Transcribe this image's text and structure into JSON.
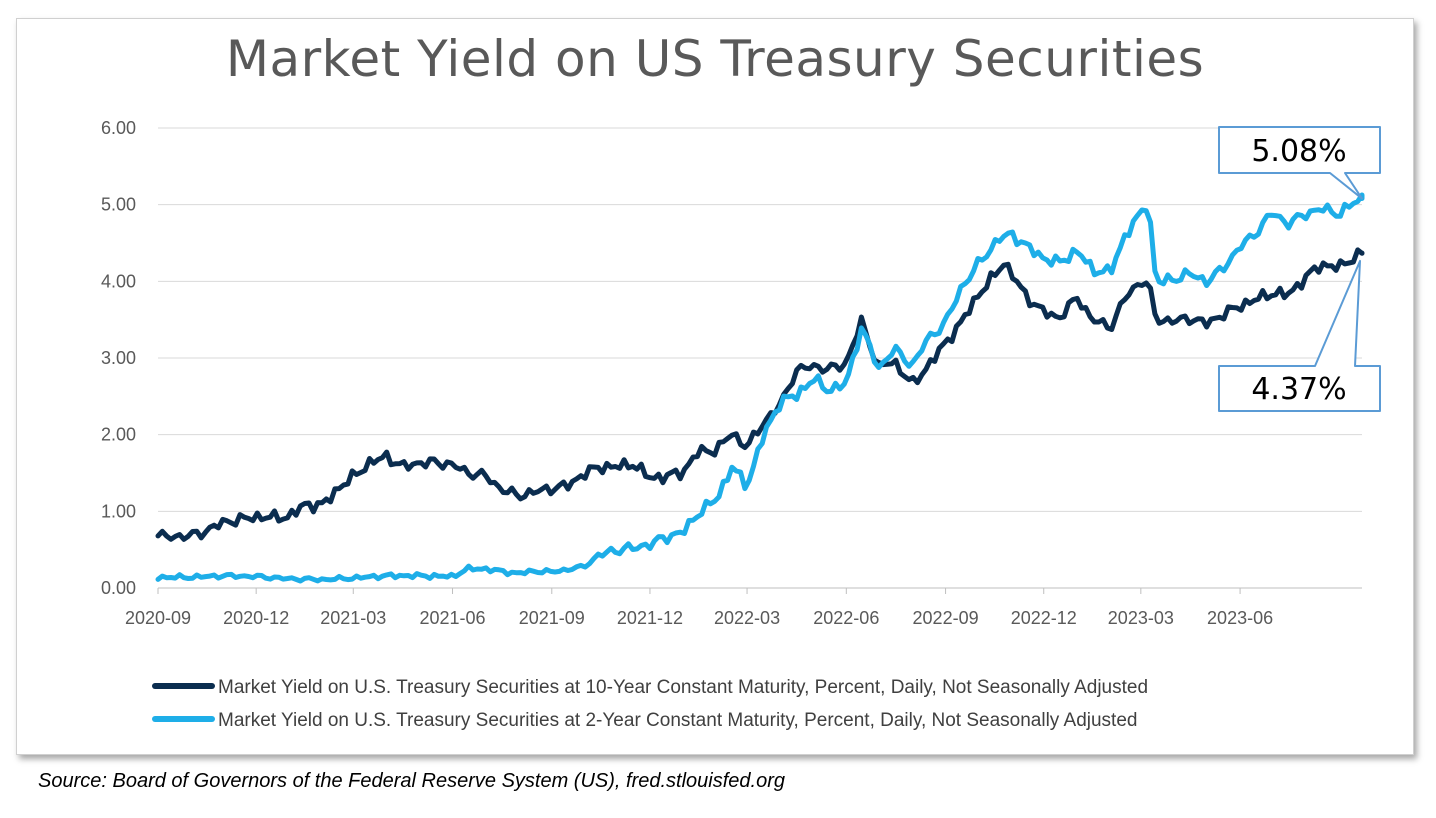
{
  "chart_data": {
    "type": "line",
    "title": "Market Yield on US Treasury Securities",
    "x_ticks": [
      "2020-09",
      "2020-12",
      "2021-03",
      "2021-06",
      "2021-09",
      "2021-12",
      "2022-03",
      "2022-06",
      "2022-09",
      "2022-12",
      "2023-03",
      "2023-06"
    ],
    "y_ticks": [
      "0.00",
      "1.00",
      "2.00",
      "3.00",
      "4.00",
      "5.00",
      "6.00"
    ],
    "ylim": [
      0,
      6
    ],
    "xlim": [
      "2020-09-01",
      "2023-09-22"
    ],
    "grid": "horizontal",
    "legend_position": "bottom",
    "series": [
      {
        "name": "Market Yield on U.S. Treasury Securities at 10-Year Constant Maturity, Percent, Daily, Not Seasonally Adjusted",
        "color": "#0b2d4f",
        "points": [
          [
            "2020-09-01",
            0.68
          ],
          [
            "2020-09-15",
            0.67
          ],
          [
            "2020-10-01",
            0.68
          ],
          [
            "2020-10-15",
            0.74
          ],
          [
            "2020-11-01",
            0.86
          ],
          [
            "2020-11-15",
            0.89
          ],
          [
            "2020-12-01",
            0.93
          ],
          [
            "2020-12-15",
            0.92
          ],
          [
            "2021-01-01",
            0.93
          ],
          [
            "2021-01-15",
            1.09
          ],
          [
            "2021-02-01",
            1.08
          ],
          [
            "2021-02-15",
            1.3
          ],
          [
            "2021-03-01",
            1.45
          ],
          [
            "2021-03-15",
            1.62
          ],
          [
            "2021-04-01",
            1.72
          ],
          [
            "2021-04-15",
            1.58
          ],
          [
            "2021-05-01",
            1.63
          ],
          [
            "2021-05-15",
            1.64
          ],
          [
            "2021-06-01",
            1.61
          ],
          [
            "2021-06-15",
            1.5
          ],
          [
            "2021-07-01",
            1.47
          ],
          [
            "2021-07-15",
            1.3
          ],
          [
            "2021-08-01",
            1.2
          ],
          [
            "2021-08-15",
            1.25
          ],
          [
            "2021-09-01",
            1.3
          ],
          [
            "2021-09-15",
            1.33
          ],
          [
            "2021-10-01",
            1.49
          ],
          [
            "2021-10-15",
            1.58
          ],
          [
            "2021-11-01",
            1.58
          ],
          [
            "2021-11-15",
            1.62
          ],
          [
            "2021-12-01",
            1.44
          ],
          [
            "2021-12-15",
            1.45
          ],
          [
            "2022-01-01",
            1.52
          ],
          [
            "2022-01-15",
            1.78
          ],
          [
            "2022-02-01",
            1.8
          ],
          [
            "2022-02-15",
            2.02
          ],
          [
            "2022-03-01",
            1.83
          ],
          [
            "2022-03-15",
            2.14
          ],
          [
            "2022-04-01",
            2.39
          ],
          [
            "2022-04-15",
            2.83
          ],
          [
            "2022-05-01",
            2.9
          ],
          [
            "2022-05-15",
            2.85
          ],
          [
            "2022-06-01",
            2.93
          ],
          [
            "2022-06-15",
            3.48
          ],
          [
            "2022-07-01",
            2.88
          ],
          [
            "2022-07-15",
            2.96
          ],
          [
            "2022-08-01",
            2.65
          ],
          [
            "2022-08-15",
            2.88
          ],
          [
            "2022-09-01",
            3.2
          ],
          [
            "2022-09-15",
            3.45
          ],
          [
            "2022-10-01",
            3.82
          ],
          [
            "2022-10-15",
            4.05
          ],
          [
            "2022-10-25",
            4.25
          ],
          [
            "2022-11-01",
            4.1
          ],
          [
            "2022-11-15",
            3.8
          ],
          [
            "2022-12-01",
            3.6
          ],
          [
            "2022-12-15",
            3.52
          ],
          [
            "2023-01-01",
            3.79
          ],
          [
            "2023-01-15",
            3.5
          ],
          [
            "2023-02-01",
            3.4
          ],
          [
            "2023-02-15",
            3.8
          ],
          [
            "2023-03-01",
            4.0
          ],
          [
            "2023-03-08",
            3.98
          ],
          [
            "2023-03-15",
            3.5
          ],
          [
            "2023-04-01",
            3.48
          ],
          [
            "2023-04-15",
            3.52
          ],
          [
            "2023-05-01",
            3.45
          ],
          [
            "2023-05-15",
            3.56
          ],
          [
            "2023-06-01",
            3.68
          ],
          [
            "2023-06-15",
            3.76
          ],
          [
            "2023-07-01",
            3.85
          ],
          [
            "2023-07-15",
            3.82
          ],
          [
            "2023-08-01",
            4.05
          ],
          [
            "2023-08-15",
            4.22
          ],
          [
            "2023-09-01",
            4.18
          ],
          [
            "2023-09-15",
            4.32
          ],
          [
            "2023-09-22",
            4.37
          ]
        ]
      },
      {
        "name": "Market Yield on U.S. Treasury Securities at 2-Year Constant Maturity, Percent, Daily, Not Seasonally Adjusted",
        "color": "#1eaee8",
        "points": [
          [
            "2020-09-01",
            0.14
          ],
          [
            "2020-10-01",
            0.14
          ],
          [
            "2020-11-01",
            0.16
          ],
          [
            "2020-12-01",
            0.15
          ],
          [
            "2021-01-01",
            0.12
          ],
          [
            "2021-02-01",
            0.11
          ],
          [
            "2021-03-01",
            0.13
          ],
          [
            "2021-04-01",
            0.16
          ],
          [
            "2021-05-01",
            0.16
          ],
          [
            "2021-06-01",
            0.15
          ],
          [
            "2021-06-15",
            0.25
          ],
          [
            "2021-07-01",
            0.25
          ],
          [
            "2021-07-15",
            0.22
          ],
          [
            "2021-08-01",
            0.19
          ],
          [
            "2021-08-15",
            0.22
          ],
          [
            "2021-09-01",
            0.21
          ],
          [
            "2021-09-15",
            0.24
          ],
          [
            "2021-10-01",
            0.28
          ],
          [
            "2021-10-15",
            0.43
          ],
          [
            "2021-11-01",
            0.5
          ],
          [
            "2021-11-15",
            0.52
          ],
          [
            "2021-12-01",
            0.57
          ],
          [
            "2021-12-15",
            0.66
          ],
          [
            "2022-01-01",
            0.73
          ],
          [
            "2022-01-15",
            0.98
          ],
          [
            "2022-02-01",
            1.16
          ],
          [
            "2022-02-15",
            1.58
          ],
          [
            "2022-03-01",
            1.33
          ],
          [
            "2022-03-15",
            1.94
          ],
          [
            "2022-04-01",
            2.44
          ],
          [
            "2022-04-15",
            2.5
          ],
          [
            "2022-05-01",
            2.73
          ],
          [
            "2022-05-15",
            2.58
          ],
          [
            "2022-06-01",
            2.66
          ],
          [
            "2022-06-15",
            3.4
          ],
          [
            "2022-07-01",
            2.86
          ],
          [
            "2022-07-15",
            3.12
          ],
          [
            "2022-08-01",
            2.9
          ],
          [
            "2022-08-15",
            3.24
          ],
          [
            "2022-09-01",
            3.46
          ],
          [
            "2022-09-15",
            3.9
          ],
          [
            "2022-10-01",
            4.22
          ],
          [
            "2022-10-20",
            4.55
          ],
          [
            "2022-11-01",
            4.62
          ],
          [
            "2022-11-15",
            4.46
          ],
          [
            "2022-12-01",
            4.3
          ],
          [
            "2022-12-15",
            4.24
          ],
          [
            "2023-01-01",
            4.4
          ],
          [
            "2023-01-15",
            4.15
          ],
          [
            "2023-02-01",
            4.12
          ],
          [
            "2023-02-15",
            4.62
          ],
          [
            "2023-03-01",
            4.88
          ],
          [
            "2023-03-08",
            5.05
          ],
          [
            "2023-03-15",
            3.98
          ],
          [
            "2023-04-01",
            4.03
          ],
          [
            "2023-04-15",
            4.1
          ],
          [
            "2023-05-01",
            4.0
          ],
          [
            "2023-05-15",
            4.15
          ],
          [
            "2023-06-01",
            4.45
          ],
          [
            "2023-06-15",
            4.62
          ],
          [
            "2023-07-01",
            4.9
          ],
          [
            "2023-07-15",
            4.75
          ],
          [
            "2023-08-01",
            4.88
          ],
          [
            "2023-08-15",
            4.95
          ],
          [
            "2023-09-01",
            4.88
          ],
          [
            "2023-09-15",
            5.03
          ],
          [
            "2023-09-22",
            5.08
          ]
        ]
      }
    ],
    "annotations": [
      {
        "text": "5.08%",
        "series": 1
      },
      {
        "text": "4.37%",
        "series": 0
      }
    ]
  },
  "source": "Source: Board of Governors of the Federal Reserve System (US), fred.stlouisfed.org"
}
